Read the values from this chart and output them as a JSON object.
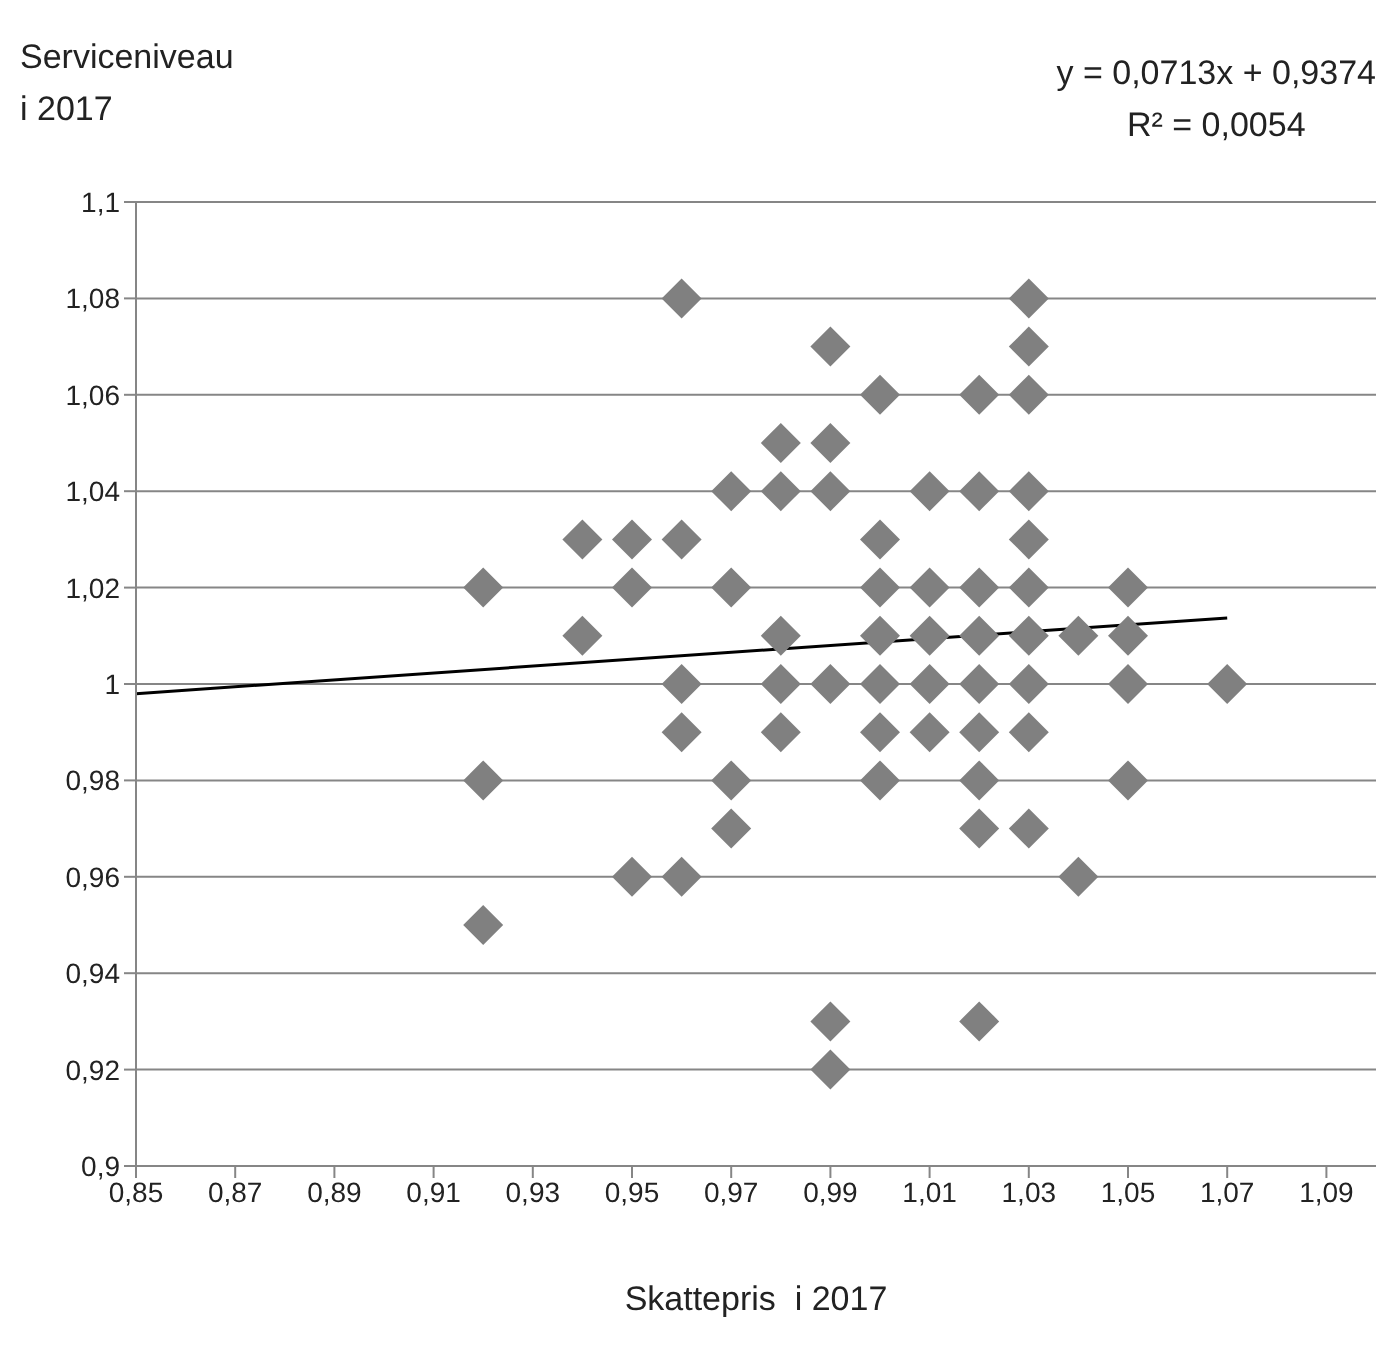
{
  "chart_data": {
    "type": "scatter",
    "xlabel": "Skattepris  i 2017",
    "ylabel": "Serviceniveau\ni 2017",
    "annotations": [
      "y = 0,0713x + 0,9374",
      "R² = 0,0054"
    ],
    "xlim": [
      0.85,
      1.1
    ],
    "xticks": [
      {
        "value": 0.85,
        "label": "0,85"
      },
      {
        "value": 0.87,
        "label": "0,87"
      },
      {
        "value": 0.89,
        "label": "0,89"
      },
      {
        "value": 0.91,
        "label": "0,91"
      },
      {
        "value": 0.93,
        "label": "0,93"
      },
      {
        "value": 0.95,
        "label": "0,95"
      },
      {
        "value": 0.97,
        "label": "0,97"
      },
      {
        "value": 0.99,
        "label": "0,99"
      },
      {
        "value": 1.01,
        "label": "1,01"
      },
      {
        "value": 1.03,
        "label": "1,03"
      },
      {
        "value": 1.05,
        "label": "1,05"
      },
      {
        "value": 1.07,
        "label": "1,07"
      },
      {
        "value": 1.09,
        "label": "1,09"
      }
    ],
    "ylim": [
      0.9,
      1.1
    ],
    "yticks": [
      {
        "value": 0.9,
        "label": "0,9"
      },
      {
        "value": 0.92,
        "label": "0,92"
      },
      {
        "value": 0.94,
        "label": "0,94"
      },
      {
        "value": 0.96,
        "label": "0,96"
      },
      {
        "value": 0.98,
        "label": "0,98"
      },
      {
        "value": 1,
        "label": "1"
      },
      {
        "value": 1.02,
        "label": "1,02"
      },
      {
        "value": 1.04,
        "label": "1,04"
      },
      {
        "value": 1.06,
        "label": "1,06"
      },
      {
        "value": 1.08,
        "label": "1,08"
      },
      {
        "value": 1.1,
        "label": "1,1"
      }
    ],
    "grid": "y",
    "series": [
      {
        "color": "#808080",
        "marker": "diamond",
        "x": [
          0.92,
          0.92,
          0.92,
          0.94,
          0.94,
          0.95,
          0.95,
          0.95,
          0.96,
          0.96,
          0.96,
          0.96,
          0.96,
          0.97,
          0.97,
          0.97,
          0.97,
          0.98,
          0.98,
          0.98,
          0.98,
          0.98,
          0.99,
          0.99,
          0.99,
          0.99,
          0.99,
          0.99,
          1.0,
          1.0,
          1.0,
          1.0,
          1.0,
          1.0,
          1.0,
          1.01,
          1.01,
          1.01,
          1.01,
          1.01,
          1.02,
          1.02,
          1.02,
          1.02,
          1.02,
          1.02,
          1.02,
          1.02,
          1.02,
          1.03,
          1.03,
          1.03,
          1.03,
          1.03,
          1.03,
          1.03,
          1.03,
          1.03,
          1.03,
          1.04,
          1.04,
          1.05,
          1.05,
          1.05,
          1.05,
          1.07
        ],
        "values": [
          1.02,
          0.98,
          0.95,
          1.03,
          1.01,
          1.03,
          1.02,
          0.96,
          1.08,
          1.03,
          1.0,
          0.99,
          0.96,
          1.04,
          1.02,
          0.98,
          0.97,
          1.05,
          1.04,
          1.01,
          1.0,
          0.99,
          1.07,
          1.05,
          1.04,
          1.0,
          0.93,
          0.92,
          1.06,
          1.03,
          1.02,
          1.01,
          1.0,
          0.99,
          0.98,
          1.04,
          1.02,
          1.01,
          1.0,
          0.99,
          1.06,
          1.04,
          1.02,
          1.01,
          1.0,
          0.99,
          0.98,
          0.97,
          0.93,
          1.08,
          1.07,
          1.06,
          1.04,
          1.03,
          1.02,
          1.01,
          1.0,
          0.99,
          0.97,
          1.01,
          0.96,
          1.02,
          1.01,
          1.0,
          0.98,
          1.0
        ]
      },
      {
        "type": "line",
        "color": "#000000",
        "marker": "none",
        "line_style": "solid",
        "x": [
          0.85,
          1.07
        ],
        "values": [
          0.998,
          1.0137
        ]
      }
    ]
  }
}
